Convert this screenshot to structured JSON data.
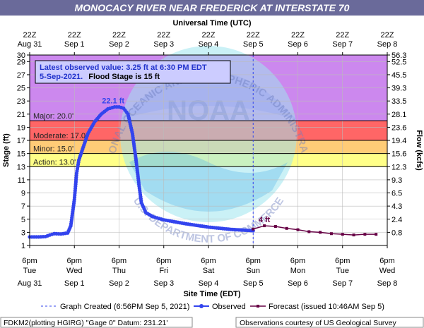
{
  "header": {
    "title": "MONOCACY RIVER NEAR FREDERICK AT INTERSTATE 70",
    "top_axis_title": "Universal Time (UTC)",
    "bottom_axis_title": "Site Time (EDT)",
    "y_left_title": "Stage (ft)",
    "y_right_title": "Flow (kcfs)"
  },
  "info_box": {
    "line1": "Latest observed value: 3.25 ft at 6:30 PM EDT",
    "line2a": "5-Sep-2021.",
    "line2b": "Flood Stage is 15 ft"
  },
  "peak_label": "22.1 ft",
  "forecast_label": "4 ft",
  "top_ticks": [
    {
      "time": "22Z",
      "date": "Aug 31"
    },
    {
      "time": "22Z",
      "date": "Sep 1"
    },
    {
      "time": "22Z",
      "date": "Sep 2"
    },
    {
      "time": "22Z",
      "date": "Sep 3"
    },
    {
      "time": "22Z",
      "date": "Sep 4"
    },
    {
      "time": "22Z",
      "date": "Sep 5"
    },
    {
      "time": "22Z",
      "date": "Sep 6"
    },
    {
      "time": "22Z",
      "date": "Sep 7"
    },
    {
      "time": "22Z",
      "date": "Sep 8"
    }
  ],
  "bottom_ticks": [
    {
      "time": "6pm",
      "day": "Tue",
      "date": "Aug 31"
    },
    {
      "time": "6pm",
      "day": "Wed",
      "date": "Sep 1"
    },
    {
      "time": "6pm",
      "day": "Thu",
      "date": "Sep 2"
    },
    {
      "time": "6pm",
      "day": "Fri",
      "date": "Sep 3"
    },
    {
      "time": "6pm",
      "day": "Sat",
      "date": "Sep 4"
    },
    {
      "time": "6pm",
      "day": "Sun",
      "date": "Sep 5"
    },
    {
      "time": "6pm",
      "day": "Mon",
      "date": "Sep 6"
    },
    {
      "time": "6pm",
      "day": "Tue",
      "date": "Sep 7"
    },
    {
      "time": "6pm",
      "day": "Wed",
      "date": "Sep 8"
    }
  ],
  "legend": {
    "created": "Graph Created (6:56PM Sep 5, 2021)",
    "observed": "Observed",
    "forecast": "Forecast (issued 10:46AM Sep 5)"
  },
  "footer": {
    "left": "FDKM2(plotting HGIRG) \"Gage 0\" Datum: 231.21'",
    "right": "Observations courtesy of US Geological Survey"
  },
  "watermark": {
    "ring_text": "NATIONAL OCEANIC AND ATMOSPHERIC ADMINISTRATION",
    "center_text": "NOAA",
    "bottom_text": "U.S. DEPARTMENT OF COMMERCE"
  },
  "colors": {
    "major": "#cc88ee",
    "moderate": "#ff6666",
    "minor": "#ffcc77",
    "action": "#ffff88",
    "observed": "#3344ee",
    "forecast": "#660044",
    "title_bar": "#6a6a9a",
    "info_box": "#ccccff"
  },
  "chart_data": {
    "type": "line",
    "x_unit": "days since Aug 31 6pm EDT",
    "x_range": [
      0,
      8
    ],
    "y_left_range": [
      1,
      30
    ],
    "y_left_ticks": [
      1,
      3,
      5,
      7,
      9,
      11,
      13,
      15,
      17,
      19,
      21,
      23,
      25,
      27,
      29,
      30
    ],
    "y_right_ticks": [
      "0.8",
      "2.4",
      "4.3",
      "6.5",
      "9.3",
      "12.3",
      "15.6",
      "19.4",
      "23.6",
      "28.1",
      "33.5",
      "39.3",
      "45.5",
      "52.5",
      "56.3"
    ],
    "flood_categories": [
      {
        "name": "Major",
        "label": "Major: 20.0'",
        "from": 20,
        "to": 30
      },
      {
        "name": "Moderate",
        "label": "Moderate: 17.0'",
        "from": 17,
        "to": 20
      },
      {
        "name": "Minor",
        "label": "Minor: 15.0'",
        "from": 15,
        "to": 17
      },
      {
        "name": "Action",
        "label": "Action: 13.0'",
        "from": 13,
        "to": 15
      }
    ],
    "observed_time": 5.0,
    "series": [
      {
        "name": "Observed",
        "points": [
          [
            0.0,
            2.3
          ],
          [
            0.2,
            2.3
          ],
          [
            0.35,
            2.35
          ],
          [
            0.45,
            2.6
          ],
          [
            0.55,
            2.8
          ],
          [
            0.7,
            2.75
          ],
          [
            0.85,
            2.9
          ],
          [
            0.92,
            4.0
          ],
          [
            1.0,
            8.0
          ],
          [
            1.05,
            12.0
          ],
          [
            1.1,
            14.0
          ],
          [
            1.2,
            16.0
          ],
          [
            1.3,
            18.0
          ],
          [
            1.45,
            19.8
          ],
          [
            1.6,
            21.0
          ],
          [
            1.75,
            21.8
          ],
          [
            1.9,
            22.1
          ],
          [
            2.0,
            22.1
          ],
          [
            2.1,
            21.9
          ],
          [
            2.2,
            21.0
          ],
          [
            2.3,
            18.0
          ],
          [
            2.38,
            14.0
          ],
          [
            2.45,
            10.0
          ],
          [
            2.5,
            7.5
          ],
          [
            2.6,
            6.0
          ],
          [
            2.75,
            5.4
          ],
          [
            3.0,
            4.9
          ],
          [
            3.5,
            4.3
          ],
          [
            4.0,
            3.8
          ],
          [
            4.5,
            3.45
          ],
          [
            5.0,
            3.25
          ]
        ]
      },
      {
        "name": "Forecast",
        "points": [
          [
            5.0,
            3.5
          ],
          [
            5.25,
            4.0
          ],
          [
            5.5,
            3.9
          ],
          [
            5.75,
            3.6
          ],
          [
            6.0,
            3.4
          ],
          [
            6.25,
            3.1
          ],
          [
            6.5,
            3.0
          ],
          [
            6.75,
            2.8
          ],
          [
            7.0,
            2.7
          ],
          [
            7.25,
            2.6
          ],
          [
            7.5,
            2.7
          ],
          [
            7.75,
            2.7
          ]
        ]
      }
    ]
  }
}
